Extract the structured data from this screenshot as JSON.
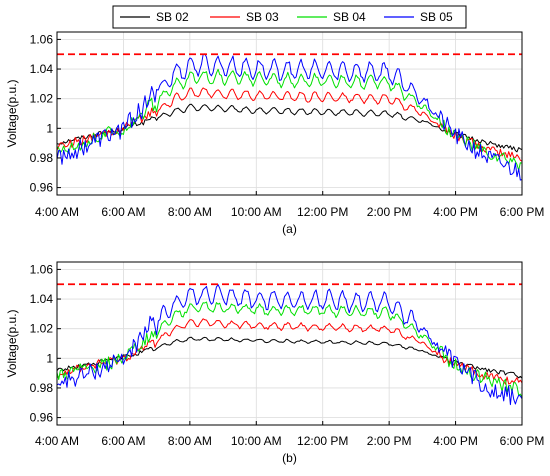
{
  "legend": {
    "entries": [
      {
        "name": "SB 02",
        "color": "#000000"
      },
      {
        "name": "SB 03",
        "color": "#ff0000"
      },
      {
        "name": "SB 04",
        "color": "#00e000"
      },
      {
        "name": "SB 05",
        "color": "#0000ff"
      }
    ]
  },
  "chart_data": [
    {
      "type": "line",
      "caption": "(a)",
      "ylabel": "Voltage(p.u.)",
      "xlabel": "",
      "x_ticks": [
        "4:00 AM",
        "6:00 AM",
        "8:00 AM",
        "10:00 AM",
        "12:00 PM",
        "2:00 PM",
        "4:00 PM",
        "6:00 PM"
      ],
      "x_range_hours": [
        4,
        18
      ],
      "ylim": [
        0.955,
        1.065
      ],
      "y_ticks": [
        0.96,
        0.98,
        1,
        1.02,
        1.04,
        1.06
      ],
      "y_tick_labels": [
        "0.96",
        "0.98",
        "1",
        "1.02",
        "1.04",
        "1.06"
      ],
      "limit_line": {
        "value": 1.05,
        "color": "#ff0000",
        "style": "dashed"
      },
      "series": [
        {
          "name": "SB 02",
          "color": "#000000",
          "x": [
            4,
            5,
            6,
            7,
            7.5,
            8,
            8.5,
            10,
            12,
            14,
            15,
            16,
            17,
            18
          ],
          "y": [
            0.99,
            0.995,
            1.0,
            1.007,
            1.011,
            1.014,
            1.014,
            1.012,
            1.011,
            1.01,
            1.005,
            0.996,
            0.99,
            0.985
          ],
          "ripple": 0.002,
          "noise": 0.001
        },
        {
          "name": "SB 03",
          "color": "#ff0000",
          "x": [
            4,
            5,
            6,
            7,
            7.5,
            8,
            8.5,
            10,
            12,
            14,
            15,
            16,
            17,
            18
          ],
          "y": [
            0.988,
            0.993,
            1.0,
            1.012,
            1.019,
            1.024,
            1.024,
            1.022,
            1.021,
            1.02,
            1.01,
            0.995,
            0.985,
            0.98
          ],
          "ripple": 0.003,
          "noise": 0.002
        },
        {
          "name": "SB 04",
          "color": "#00e000",
          "x": [
            4,
            5,
            6,
            7,
            7.5,
            8,
            8.5,
            10,
            12,
            14,
            15,
            16,
            17,
            18
          ],
          "y": [
            0.985,
            0.992,
            1.0,
            1.018,
            1.028,
            1.034,
            1.035,
            1.033,
            1.032,
            1.031,
            1.015,
            0.995,
            0.982,
            0.975
          ],
          "ripple": 0.004,
          "noise": 0.003
        },
        {
          "name": "SB 05",
          "color": "#0000ff",
          "x": [
            4,
            5,
            6,
            7,
            7.5,
            8,
            8.5,
            10,
            12,
            14,
            15,
            16,
            17,
            18
          ],
          "y": [
            0.98,
            0.99,
            1.0,
            1.025,
            1.036,
            1.042,
            1.043,
            1.04,
            1.039,
            1.038,
            1.02,
            0.995,
            0.98,
            0.97
          ],
          "ripple": 0.006,
          "noise": 0.004
        }
      ]
    },
    {
      "type": "line",
      "caption": "(b)",
      "ylabel": "Voltage(p.u.)",
      "xlabel": "",
      "x_ticks": [
        "4:00 AM",
        "6:00 AM",
        "8:00 AM",
        "10:00 AM",
        "12:00 PM",
        "2:00 PM",
        "4:00 PM",
        "6:00 PM"
      ],
      "x_range_hours": [
        4,
        18
      ],
      "ylim": [
        0.955,
        1.065
      ],
      "y_ticks": [
        0.96,
        0.98,
        1,
        1.02,
        1.04,
        1.06
      ],
      "y_tick_labels": [
        "0.96",
        "0.98",
        "1",
        "1.02",
        "1.04",
        "1.06"
      ],
      "limit_line": {
        "value": 1.05,
        "color": "#ff0000",
        "style": "dashed"
      },
      "series": [
        {
          "name": "SB 02",
          "color": "#000000",
          "x": [
            4,
            5,
            6,
            7,
            7.5,
            8,
            8.5,
            10,
            12,
            14,
            15,
            16,
            17,
            18
          ],
          "y": [
            0.992,
            0.996,
            1.001,
            1.007,
            1.011,
            1.013,
            1.013,
            1.012,
            1.011,
            1.01,
            1.005,
            0.997,
            0.992,
            0.988
          ],
          "ripple": 0.001,
          "noise": 0.001
        },
        {
          "name": "SB 03",
          "color": "#ff0000",
          "x": [
            4,
            5,
            6,
            7,
            7.5,
            8,
            8.5,
            10,
            12,
            14,
            15,
            16,
            17,
            18
          ],
          "y": [
            0.99,
            0.995,
            1.0,
            1.012,
            1.019,
            1.024,
            1.024,
            1.022,
            1.021,
            1.02,
            1.01,
            0.995,
            0.988,
            0.983
          ],
          "ripple": 0.002,
          "noise": 0.002
        },
        {
          "name": "SB 04",
          "color": "#00e000",
          "x": [
            4,
            5,
            6,
            7,
            7.5,
            8,
            8.5,
            10,
            12,
            14,
            15,
            16,
            17,
            18
          ],
          "y": [
            0.988,
            0.993,
            1.0,
            1.018,
            1.028,
            1.034,
            1.035,
            1.033,
            1.032,
            1.031,
            1.015,
            0.995,
            0.985,
            0.978
          ],
          "ripple": 0.003,
          "noise": 0.003
        },
        {
          "name": "SB 05",
          "color": "#0000ff",
          "x": [
            4,
            5,
            6,
            7,
            7.5,
            8,
            8.5,
            10,
            12,
            14,
            15,
            16,
            17,
            18
          ],
          "y": [
            0.983,
            0.99,
            1.0,
            1.025,
            1.036,
            1.042,
            1.043,
            1.04,
            1.039,
            1.038,
            1.02,
            0.995,
            0.98,
            0.972
          ],
          "ripple": 0.006,
          "noise": 0.004
        }
      ]
    }
  ]
}
